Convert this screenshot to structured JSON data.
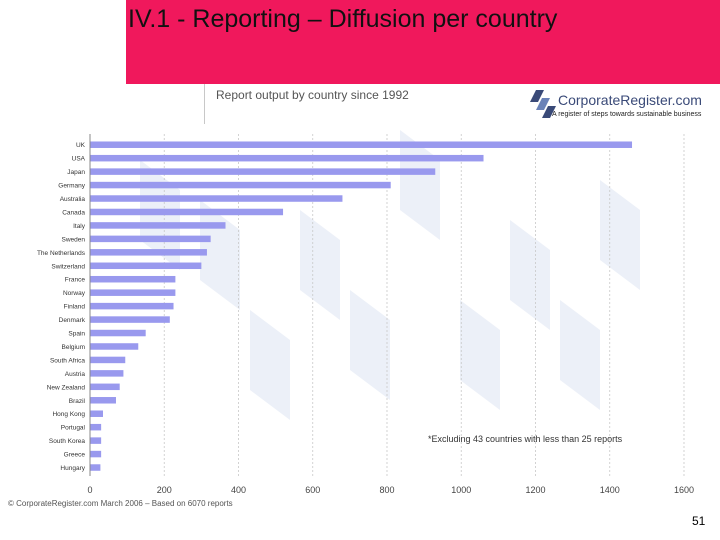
{
  "slide": {
    "title": "IV.1 - Reporting – Diffusion per country",
    "report_title": "Report output by country since 1992",
    "footnote": "*Excluding 43 countries with less than 25 reports",
    "source": "© CorporateRegister.com March 2006 – Based on 6070 reports",
    "page_number": "51",
    "colors": {
      "title_bar": "#f0185c",
      "bar": "#9999ee",
      "watermark": "#dfe6f3"
    }
  },
  "logo": {
    "name": "CorporateRegister.com",
    "tagline": "A register of steps towards sustainable business"
  },
  "chart_data": {
    "type": "bar",
    "orientation": "horizontal",
    "categories": [
      "UK",
      "USA",
      "Japan",
      "Germany",
      "Australia",
      "Canada",
      "Italy",
      "Sweden",
      "The Netherlands",
      "Switzerland",
      "France",
      "Norway",
      "Finland",
      "Denmark",
      "Spain",
      "Belgium",
      "South Africa",
      "Austria",
      "New Zealand",
      "Brazil",
      "Hong Kong",
      "Portugal",
      "South Korea",
      "Greece",
      "Hungary"
    ],
    "values": [
      1460,
      1060,
      930,
      810,
      680,
      520,
      365,
      325,
      315,
      300,
      230,
      230,
      225,
      215,
      150,
      130,
      95,
      90,
      80,
      70,
      35,
      30,
      30,
      30,
      28
    ],
    "xlim": [
      0,
      1600
    ],
    "xticks": [
      0,
      200,
      400,
      600,
      800,
      1000,
      1200,
      1400,
      1600
    ],
    "grid": "vertical"
  }
}
